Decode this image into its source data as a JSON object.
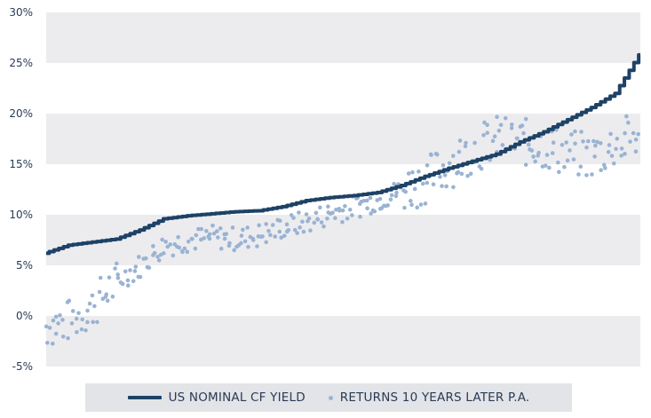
{
  "chart_data": {
    "type": "line",
    "title": "",
    "xlabel": "",
    "ylabel": "",
    "ylim": [
      -5,
      30
    ],
    "yticks": [
      -5,
      0,
      5,
      10,
      15,
      20,
      25,
      30
    ],
    "ytick_labels": [
      "-5%",
      "0%",
      "5%",
      "10%",
      "15%",
      "20%",
      "25%",
      "30%"
    ],
    "grid": "alternating horizontal bands",
    "legend_placement": "bottom-center",
    "x": [
      0,
      4,
      8,
      12,
      16,
      20,
      24,
      28,
      32,
      36,
      40,
      44,
      48,
      52,
      56,
      60,
      64,
      68,
      72,
      76,
      80,
      84,
      88,
      92,
      96,
      100
    ],
    "series": [
      {
        "name": "US NOMINAL CF YIELD",
        "kind": "line",
        "color": "#1e4266",
        "x": [
          0,
          4,
          8,
          12,
          16,
          20,
          24,
          28,
          32,
          36,
          40,
          44,
          48,
          52,
          56,
          60,
          64,
          68,
          72,
          76,
          80,
          84,
          88,
          92,
          96,
          100
        ],
        "values": [
          6.2,
          7.0,
          7.3,
          7.6,
          8.5,
          9.6,
          9.9,
          10.1,
          10.3,
          10.4,
          10.8,
          11.4,
          11.7,
          11.9,
          12.2,
          12.9,
          13.8,
          14.6,
          15.3,
          16.0,
          17.2,
          18.2,
          19.4,
          20.6,
          22.0,
          25.8
        ]
      },
      {
        "name": "RETURNS 10 YEARS LATER P.A.",
        "kind": "scatter",
        "color": "#9ab3d3",
        "x": [
          0,
          4,
          8,
          12,
          16,
          20,
          24,
          28,
          32,
          36,
          40,
          44,
          48,
          52,
          56,
          60,
          64,
          68,
          72,
          76,
          80,
          84,
          88,
          92,
          96,
          100
        ],
        "values": [
          -1.0,
          -0.5,
          1.0,
          3.5,
          5.0,
          7.0,
          7.5,
          7.8,
          7.6,
          8.0,
          8.8,
          9.3,
          10.2,
          10.8,
          11.5,
          12.5,
          13.5,
          15.0,
          16.5,
          17.5,
          17.2,
          16.8,
          16.0,
          15.8,
          17.0,
          18.0
        ]
      }
    ]
  }
}
